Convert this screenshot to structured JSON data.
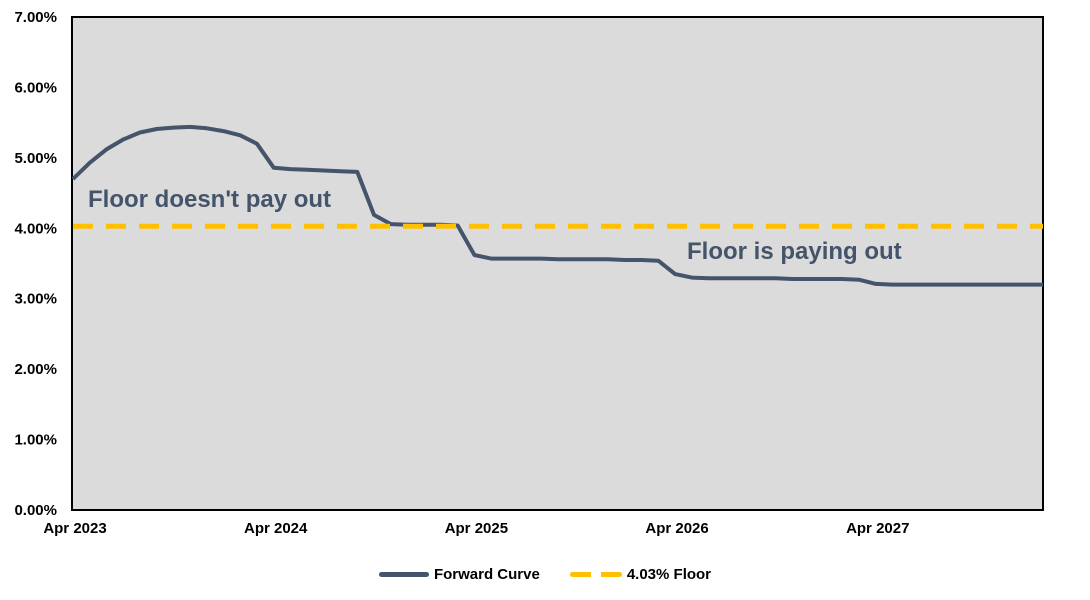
{
  "chart_data": {
    "type": "line",
    "title": "",
    "xlabel": "",
    "ylabel": "",
    "ylim": [
      0,
      7
    ],
    "grid": false,
    "plot_bg_color": "#DBDBDB",
    "plot_border_color": "#000000",
    "x": [
      "Apr 2023",
      "May 2023",
      "Jun 2023",
      "Jul 2023",
      "Aug 2023",
      "Sep 2023",
      "Oct 2023",
      "Nov 2023",
      "Dec 2023",
      "Jan 2024",
      "Feb 2024",
      "Mar 2024",
      "Apr 2024",
      "May 2024",
      "Jun 2024",
      "Jul 2024",
      "Aug 2024",
      "Sep 2024",
      "Oct 2024",
      "Nov 2024",
      "Dec 2024",
      "Jan 2025",
      "Feb 2025",
      "Mar 2025",
      "Apr 2025",
      "May 2025",
      "Jun 2025",
      "Jul 2025",
      "Aug 2025",
      "Sep 2025",
      "Oct 2025",
      "Nov 2025",
      "Dec 2025",
      "Jan 2026",
      "Feb 2026",
      "Mar 2026",
      "Apr 2026",
      "May 2026",
      "Jun 2026",
      "Jul 2026",
      "Aug 2026",
      "Sep 2026",
      "Oct 2026",
      "Nov 2026",
      "Dec 2026",
      "Jan 2027",
      "Feb 2027",
      "Mar 2027",
      "Apr 2027",
      "May 2027",
      "Jun 2027",
      "Jul 2027",
      "Aug 2027",
      "Sep 2027",
      "Oct 2027",
      "Nov 2027",
      "Dec 2027",
      "Jan 2028",
      "Feb 2028"
    ],
    "series": [
      {
        "name": "Forward Curve",
        "color": "#44546A",
        "style": "solid",
        "values": [
          4.7,
          4.93,
          5.12,
          5.26,
          5.36,
          5.41,
          5.43,
          5.44,
          5.42,
          5.38,
          5.32,
          5.2,
          4.86,
          4.84,
          4.83,
          4.82,
          4.81,
          4.8,
          4.19,
          4.06,
          4.05,
          4.05,
          4.05,
          4.04,
          3.62,
          3.57,
          3.57,
          3.57,
          3.57,
          3.56,
          3.56,
          3.56,
          3.56,
          3.55,
          3.55,
          3.54,
          3.35,
          3.3,
          3.29,
          3.29,
          3.29,
          3.29,
          3.29,
          3.28,
          3.28,
          3.28,
          3.28,
          3.27,
          3.21,
          3.2,
          3.2,
          3.2,
          3.2,
          3.2,
          3.2,
          3.2,
          3.2,
          3.2,
          3.2
        ]
      },
      {
        "name": "4.03% Floor",
        "color": "#FFC000",
        "style": "dashed",
        "value": 4.03
      }
    ],
    "x_ticks": [
      "Apr 2023",
      "Apr 2024",
      "Apr 2025",
      "Apr 2026",
      "Apr 2027"
    ],
    "y_ticks": [
      "0.00%",
      "1.00%",
      "2.00%",
      "3.00%",
      "4.00%",
      "5.00%",
      "6.00%",
      "7.00%"
    ],
    "legend": {
      "position": "bottom",
      "entries": [
        "Forward Curve",
        "4.03% Floor"
      ]
    },
    "annotations": [
      {
        "text": "Floor doesn't pay out",
        "color": "#44546A"
      },
      {
        "text": "Floor is paying out",
        "color": "#44546A"
      }
    ]
  }
}
